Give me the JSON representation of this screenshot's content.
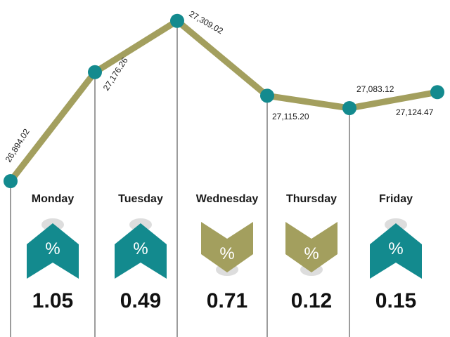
{
  "colors": {
    "line": "#a39f5e",
    "marker": "#138a8e",
    "up": "#138a8e",
    "down": "#a39f5e",
    "divider": "#3a3a3a"
  },
  "chart_data": {
    "type": "line",
    "categories": [
      "Monday",
      "Tuesday",
      "Wednesday",
      "Thursday",
      "Friday"
    ],
    "index_values": [
      26894.02,
      27176.26,
      27309.02,
      27115.2,
      27124.47
    ],
    "index_labels": [
      "26,894.02",
      "27,176.26",
      "27,309.02",
      "27,115.20",
      "27,124.47"
    ],
    "extra_point": {
      "value": 27083.12,
      "label": "27,083.12"
    },
    "direction": [
      "up",
      "up",
      "down",
      "down",
      "up"
    ],
    "change": [
      "1.05",
      "0.49",
      "0.71",
      "0.12",
      "0.15"
    ],
    "change_symbol": "%"
  }
}
